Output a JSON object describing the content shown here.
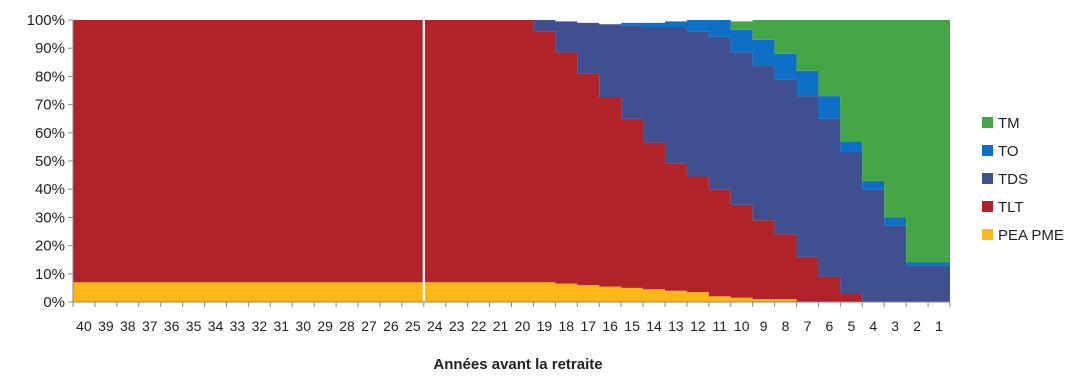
{
  "chart_data": {
    "type": "area",
    "title": "",
    "xlabel": "Années avant la retraite",
    "ylabel": "",
    "ylim": [
      0,
      100
    ],
    "y_ticks": [
      "0%",
      "10%",
      "20%",
      "30%",
      "40%",
      "50%",
      "60%",
      "70%",
      "80%",
      "90%",
      "100%"
    ],
    "stacked": true,
    "step": true,
    "grid": false,
    "legend_position": "right",
    "x": [
      40,
      39,
      38,
      37,
      36,
      35,
      34,
      33,
      32,
      31,
      30,
      29,
      28,
      27,
      26,
      25,
      24,
      23,
      22,
      21,
      20,
      19,
      18,
      17,
      16,
      15,
      14,
      13,
      12,
      11,
      10,
      9,
      8,
      7,
      6,
      5,
      4,
      3,
      2,
      1
    ],
    "series": [
      {
        "name": "PEA PME",
        "color": "#fdb719",
        "values": [
          7,
          7,
          7,
          7,
          7,
          7,
          7,
          7,
          7,
          7,
          7,
          7,
          7,
          7,
          7,
          7,
          7,
          7,
          7,
          7,
          7,
          7,
          6.5,
          6,
          5.5,
          5,
          4.5,
          4,
          3.5,
          2,
          1.5,
          1,
          1,
          0,
          0,
          0,
          0,
          0,
          0,
          0
        ]
      },
      {
        "name": "TLT",
        "color": "#b22229",
        "values": [
          93,
          93,
          93,
          93,
          93,
          93,
          93,
          93,
          93,
          93,
          93,
          93,
          93,
          93,
          93,
          93,
          93,
          93,
          93,
          93,
          93,
          89,
          82,
          75,
          67,
          60,
          52,
          45,
          41,
          38,
          33,
          28,
          23,
          16,
          9,
          3,
          0,
          0,
          0,
          0
        ]
      },
      {
        "name": "TDS",
        "color": "#3f4f8f",
        "values": [
          0,
          0,
          0,
          0,
          0,
          0,
          0,
          0,
          0,
          0,
          0,
          0,
          0,
          0,
          0,
          0,
          0,
          0,
          0,
          0,
          0,
          4,
          11,
          18,
          26,
          33,
          41,
          48.5,
          51.5,
          54,
          54,
          55,
          55,
          57,
          56,
          50,
          40,
          27,
          13,
          13
        ]
      },
      {
        "name": "TO",
        "color": "#0d70c6",
        "values": [
          0,
          0,
          0,
          0,
          0,
          0,
          0,
          0,
          0,
          0,
          0,
          0,
          0,
          0,
          0,
          0,
          0,
          0,
          0,
          0,
          0,
          0,
          0,
          0,
          0,
          1,
          1.5,
          2,
          4,
          6,
          8,
          9,
          9,
          9,
          8,
          4,
          3,
          3,
          1,
          1
        ]
      },
      {
        "name": "TM",
        "color": "#43a545",
        "values": [
          0,
          0,
          0,
          0,
          0,
          0,
          0,
          0,
          0,
          0,
          0,
          0,
          0,
          0,
          0,
          0,
          0,
          0,
          0,
          0,
          0,
          0,
          0,
          0,
          0,
          0,
          0,
          0,
          0,
          0,
          3,
          7,
          12,
          18,
          27,
          43,
          57,
          70,
          86,
          86
        ]
      }
    ],
    "legend": [
      "TM",
      "TO",
      "TDS",
      "TLT",
      "PEA PME"
    ],
    "annotations": [
      "vertical line at 25 years"
    ],
    "annotation_x": 25
  }
}
